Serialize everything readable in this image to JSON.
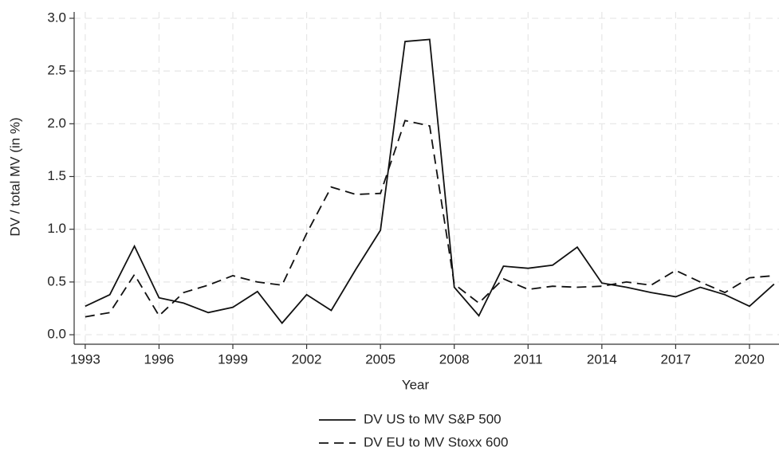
{
  "chart_data": {
    "type": "line",
    "x_label": "Year",
    "y_label": "DV / total MV (in %)",
    "x": [
      1993,
      1994,
      1995,
      1996,
      1997,
      1998,
      1999,
      2000,
      2001,
      2002,
      2003,
      2004,
      2005,
      2006,
      2007,
      2008,
      2009,
      2010,
      2011,
      2012,
      2013,
      2014,
      2015,
      2016,
      2017,
      2018,
      2019,
      2020,
      2021
    ],
    "series": [
      {
        "name": "DV US to MV S&P 500",
        "color": "#111111",
        "linestyle": "solid",
        "values": [
          0.27,
          0.38,
          0.84,
          0.35,
          0.3,
          0.21,
          0.26,
          0.41,
          0.11,
          0.38,
          0.23,
          0.62,
          0.99,
          2.78,
          2.8,
          0.45,
          0.18,
          0.65,
          0.63,
          0.66,
          0.83,
          0.49,
          0.45,
          0.4,
          0.36,
          0.45,
          0.38,
          0.27,
          0.48
        ]
      },
      {
        "name": "DV EU to MV Stoxx 600",
        "color": "#111111",
        "linestyle": "dashed",
        "values": [
          0.17,
          0.21,
          0.57,
          0.18,
          0.4,
          0.47,
          0.56,
          0.5,
          0.47,
          0.96,
          1.4,
          1.33,
          1.34,
          2.03,
          1.98,
          0.48,
          0.3,
          0.53,
          0.43,
          0.46,
          0.45,
          0.46,
          0.5,
          0.47,
          0.61,
          0.5,
          0.4,
          0.54,
          0.56
        ]
      }
    ],
    "xlim": [
      1992.55,
      2021.2
    ],
    "xticks": [
      1993,
      1996,
      1999,
      2002,
      2005,
      2008,
      2011,
      2014,
      2017,
      2020
    ],
    "ylim": [
      -0.09,
      3.06
    ],
    "yticks": [
      {
        "value": 0,
        "label": "0.0"
      },
      {
        "value": 0.5,
        "label": "0.5"
      },
      {
        "value": 1,
        "label": "1.0"
      },
      {
        "value": 1.5,
        "label": "1.5"
      },
      {
        "value": 2,
        "label": "2.0"
      },
      {
        "value": 2.5,
        "label": "2.5"
      },
      {
        "value": 3,
        "label": "3.0"
      }
    ],
    "grid": true,
    "legend_position": "bottom"
  }
}
